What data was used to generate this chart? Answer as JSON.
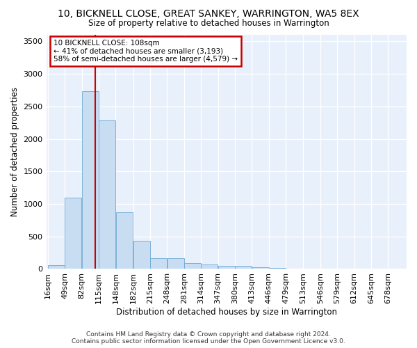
{
  "title": "10, BICKNELL CLOSE, GREAT SANKEY, WARRINGTON, WA5 8EX",
  "subtitle": "Size of property relative to detached houses in Warrington",
  "xlabel": "Distribution of detached houses by size in Warrington",
  "ylabel": "Number of detached properties",
  "bar_color": "#c8ddf2",
  "bar_edge_color": "#6aaad4",
  "bg_color": "#e8f0fb",
  "grid_color": "#ffffff",
  "annotation_box_color": "#cc0000",
  "annotation_line_color": "#cc0000",
  "annotation_line1": "10 BICKNELL CLOSE: 108sqm",
  "annotation_line2": "← 41% of detached houses are smaller (3,193)",
  "annotation_line3": "58% of semi-detached houses are larger (4,579) →",
  "property_size": 108,
  "footer_line1": "Contains HM Land Registry data © Crown copyright and database right 2024.",
  "footer_line2": "Contains public sector information licensed under the Open Government Licence v3.0.",
  "bin_edges": [
    16,
    49,
    82,
    115,
    148,
    182,
    215,
    248,
    281,
    314,
    347,
    380,
    413,
    446,
    479,
    513,
    546,
    579,
    612,
    645,
    678
  ],
  "bin_labels": [
    "16sqm",
    "49sqm",
    "82sqm",
    "115sqm",
    "148sqm",
    "182sqm",
    "215sqm",
    "248sqm",
    "281sqm",
    "314sqm",
    "347sqm",
    "380sqm",
    "413sqm",
    "446sqm",
    "479sqm",
    "513sqm",
    "546sqm",
    "579sqm",
    "612sqm",
    "645sqm",
    "678sqm"
  ],
  "bar_heights": [
    55,
    1100,
    2730,
    2280,
    870,
    430,
    170,
    165,
    90,
    65,
    50,
    50,
    30,
    20,
    5,
    5,
    5,
    5,
    5,
    5
  ],
  "ylim": [
    0,
    3600
  ],
  "yticks": [
    0,
    500,
    1000,
    1500,
    2000,
    2500,
    3000,
    3500
  ]
}
